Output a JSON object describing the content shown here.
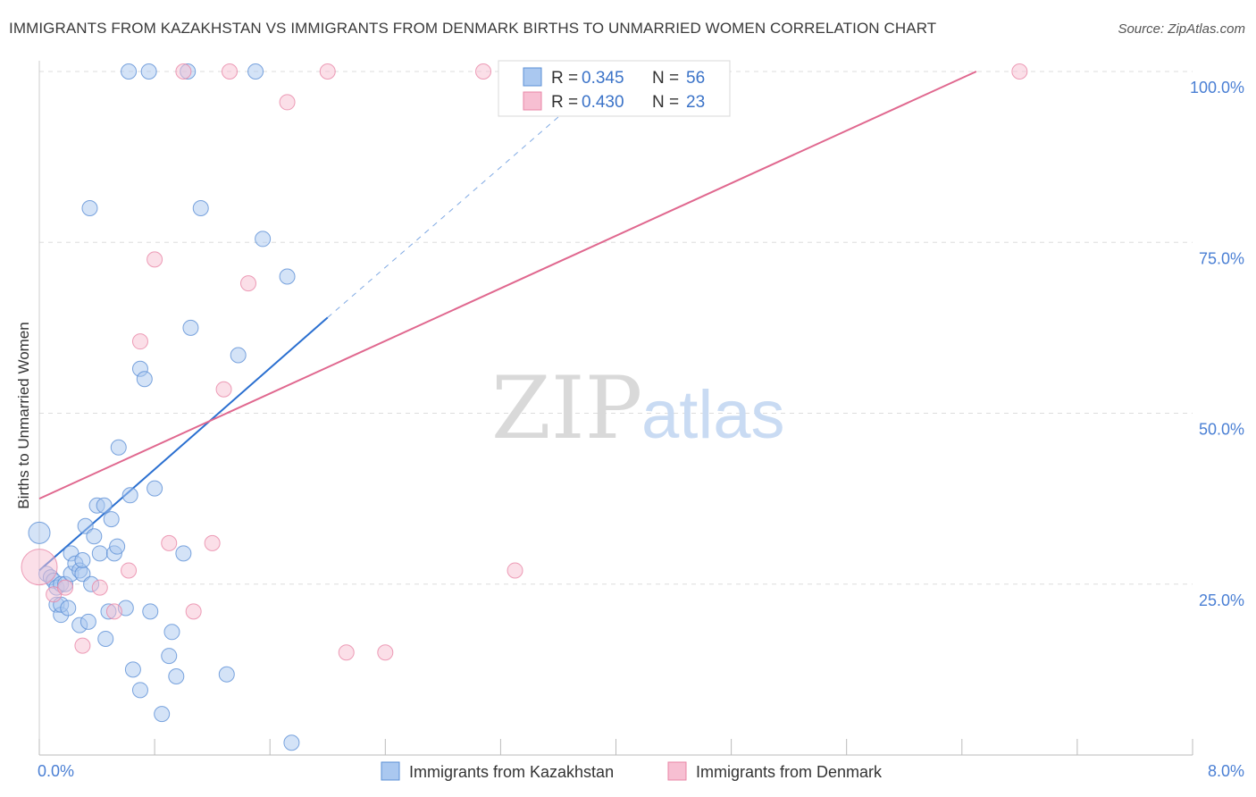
{
  "title": "IMMIGRANTS FROM KAZAKHSTAN VS IMMIGRANTS FROM DENMARK BIRTHS TO UNMARRIED WOMEN CORRELATION CHART",
  "source": "Source: ZipAtlas.com",
  "watermark": {
    "zip": "ZIP",
    "atlas": "atlas"
  },
  "colors": {
    "blue_fill": "#aac8f0",
    "blue_stroke": "#5b8fd6",
    "blue_line": "#2a6fd0",
    "pink_fill": "#f7bfd2",
    "pink_stroke": "#e886a6",
    "pink_line": "#e0688f",
    "grid": "#dddddd",
    "tick": "#4a7fd4"
  },
  "legend": {
    "row1": {
      "r_label": "R =",
      "r_value": "0.345",
      "n_label": "N =",
      "n_value": "56"
    },
    "row2": {
      "r_label": "R =",
      "r_value": "0.430",
      "n_label": "N =",
      "n_value": "23"
    }
  },
  "chart_data": {
    "type": "scatter",
    "title": "IMMIGRANTS FROM KAZAKHSTAN VS IMMIGRANTS FROM DENMARK BIRTHS TO UNMARRIED WOMEN CORRELATION CHART",
    "xlabel": "",
    "ylabel": "Births to Unmarried Women",
    "xlim": [
      0,
      8.0
    ],
    "ylim": [
      0,
      100
    ],
    "x_tick_labels": [
      "0.0%",
      "8.0%"
    ],
    "y_ticks": [
      25,
      50,
      75,
      100
    ],
    "y_tick_labels": [
      "25.0%",
      "50.0%",
      "75.0%",
      "100.0%"
    ],
    "series": [
      {
        "name": "Immigrants from Kazakhstan",
        "color": "blue",
        "points": [
          [
            0.0,
            32.5
          ],
          [
            0.05,
            26.5
          ],
          [
            0.08,
            26.0
          ],
          [
            0.1,
            25.5
          ],
          [
            0.12,
            24.5
          ],
          [
            0.12,
            22.0
          ],
          [
            0.15,
            25.0
          ],
          [
            0.15,
            20.5
          ],
          [
            0.15,
            22.0
          ],
          [
            0.18,
            25.0
          ],
          [
            0.2,
            21.5
          ],
          [
            0.22,
            29.5
          ],
          [
            0.22,
            26.5
          ],
          [
            0.25,
            28.0
          ],
          [
            0.28,
            19.0
          ],
          [
            0.28,
            27.0
          ],
          [
            0.3,
            26.5
          ],
          [
            0.3,
            28.5
          ],
          [
            0.32,
            33.5
          ],
          [
            0.34,
            19.5
          ],
          [
            0.36,
            25.0
          ],
          [
            0.38,
            32.0
          ],
          [
            0.4,
            36.5
          ],
          [
            0.42,
            29.5
          ],
          [
            0.45,
            36.5
          ],
          [
            0.46,
            17.0
          ],
          [
            0.48,
            21.0
          ],
          [
            0.5,
            34.5
          ],
          [
            0.52,
            29.5
          ],
          [
            0.54,
            30.5
          ],
          [
            0.55,
            45.0
          ],
          [
            0.6,
            21.5
          ],
          [
            0.63,
            38.0
          ],
          [
            0.65,
            12.5
          ],
          [
            0.7,
            9.5
          ],
          [
            0.7,
            56.5
          ],
          [
            0.73,
            55.0
          ],
          [
            0.77,
            21.0
          ],
          [
            0.8,
            39.0
          ],
          [
            0.85,
            6.0
          ],
          [
            0.9,
            14.5
          ],
          [
            0.92,
            18.0
          ],
          [
            0.95,
            11.5
          ],
          [
            1.0,
            29.5
          ],
          [
            1.05,
            62.5
          ],
          [
            1.12,
            80.0
          ],
          [
            1.3,
            11.8
          ],
          [
            1.38,
            58.5
          ],
          [
            1.55,
            75.5
          ],
          [
            1.72,
            70.0
          ],
          [
            1.75,
            1.8
          ],
          [
            0.35,
            80.0
          ],
          [
            0.62,
            100.0
          ],
          [
            0.76,
            100.0
          ],
          [
            1.03,
            100.0
          ],
          [
            1.5,
            100.0
          ]
        ]
      },
      {
        "name": "Immigrants from Denmark",
        "color": "pink",
        "points": [
          [
            0.0,
            27.5
          ],
          [
            0.1,
            23.5
          ],
          [
            0.18,
            24.5
          ],
          [
            0.3,
            16.0
          ],
          [
            0.42,
            24.5
          ],
          [
            0.52,
            21.0
          ],
          [
            0.62,
            27.0
          ],
          [
            0.7,
            60.5
          ],
          [
            0.8,
            72.5
          ],
          [
            0.9,
            31.0
          ],
          [
            1.07,
            21.0
          ],
          [
            1.2,
            31.0
          ],
          [
            1.28,
            53.5
          ],
          [
            1.45,
            69.0
          ],
          [
            1.72,
            95.5
          ],
          [
            2.13,
            15.0
          ],
          [
            2.4,
            15.0
          ],
          [
            3.3,
            27.0
          ],
          [
            1.0,
            100.0
          ],
          [
            1.32,
            100.0
          ],
          [
            2.0,
            100.0
          ],
          [
            3.08,
            100.0
          ],
          [
            6.8,
            100.0
          ]
        ]
      }
    ],
    "trend_lines": [
      {
        "series": "Immigrants from Kazakhstan",
        "x": [
          0.0,
          2.0
        ],
        "y": [
          27.0,
          64.0
        ],
        "dashed_extension_to": [
          3.8,
          97.0
        ]
      },
      {
        "series": "Immigrants from Denmark",
        "x": [
          0.0,
          6.5
        ],
        "y": [
          37.5,
          100.0
        ]
      }
    ],
    "legend": [
      {
        "label": "Immigrants from Kazakhstan",
        "R": "0.345",
        "N": "56"
      },
      {
        "label": "Immigrants from Denmark",
        "R": "0.430",
        "N": "23"
      }
    ]
  }
}
